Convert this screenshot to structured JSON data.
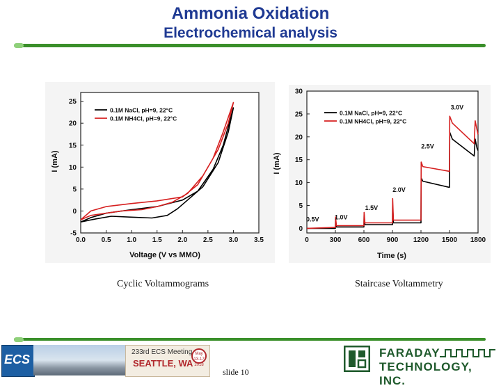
{
  "slide": {
    "title": "Ammonia Oxidation",
    "subtitle": "Electrochemical analysis",
    "caption_left": "Cyclic Voltammograms",
    "caption_right": "Staircase Voltammetry",
    "slide_number": "slide 10"
  },
  "footer": {
    "ecs_logo_text": "ECS",
    "meeting_line1": "233rd ECS Meeting",
    "meeting_line2": "SEATTLE, WA",
    "meeting_badge": "May 13-17 2018",
    "company_line1": "FARADAY",
    "company_line2": "TECHNOLOGY, INC."
  },
  "colors": {
    "title": "#1f3a93",
    "series_nacl": "#000000",
    "series_nh4cl": "#d62020",
    "accent_bar": "#3a8f2a",
    "company": "#1f5a2c"
  },
  "chart_data": [
    {
      "type": "line",
      "xlabel": "Voltage (V vs MMO)",
      "ylabel": "I (mA)",
      "xlim": [
        0,
        3.5
      ],
      "ylim": [
        -5,
        27
      ],
      "xticks": [
        "0.0",
        "0.5",
        "1.0",
        "1.5",
        "2.0",
        "2.5",
        "3.0",
        "3.5"
      ],
      "yticks": [
        "-5",
        "0",
        "5",
        "10",
        "15",
        "20",
        "25"
      ],
      "legend_position": "top-left",
      "series": [
        {
          "name": "0.1M NaCl, pH=9, 22°C",
          "x": [
            0,
            0.2,
            0.5,
            1.0,
            1.5,
            2.0,
            2.3,
            2.6,
            2.8,
            3.0,
            2.9,
            2.7,
            2.4,
            2.1,
            1.9,
            1.7,
            1.4,
            1.0,
            0.6,
            0.3,
            0
          ],
          "y": [
            -2.5,
            -1.5,
            -0.5,
            0.3,
            1.0,
            2.5,
            4.5,
            9.5,
            15.0,
            23.5,
            18.0,
            11.0,
            5.5,
            2.5,
            0.5,
            -1.0,
            -1.6,
            -1.4,
            -1.2,
            -1.8,
            -2.5
          ]
        },
        {
          "name": "0.1M NH4Cl, pH=9, 22°C",
          "x": [
            0,
            0.2,
            0.5,
            1.0,
            1.5,
            2.0,
            2.3,
            2.6,
            2.8,
            3.0,
            2.9,
            2.7,
            2.4,
            2.1,
            1.8,
            1.5,
            1.2,
            0.8,
            0.5,
            0.2,
            0
          ],
          "y": [
            -2.0,
            0.0,
            1.0,
            1.7,
            2.3,
            3.2,
            6.0,
            12.0,
            18.0,
            24.7,
            20.0,
            14.0,
            8.0,
            4.0,
            2.0,
            1.0,
            0.3,
            0.0,
            -0.5,
            -1.0,
            -2.0
          ]
        }
      ]
    },
    {
      "type": "line",
      "xlabel": "Time (s)",
      "ylabel": "I (mA)",
      "xlim": [
        0,
        1800
      ],
      "ylim": [
        -1,
        30
      ],
      "xticks": [
        "0",
        "300",
        "600",
        "900",
        "1200",
        "1500",
        "1800"
      ],
      "yticks": [
        "0",
        "5",
        "10",
        "15",
        "20",
        "25",
        "30"
      ],
      "legend_position": "top-left",
      "annotations": [
        {
          "text": "0.5V",
          "x": 60,
          "y": 1.5
        },
        {
          "text": "1.0V",
          "x": 360,
          "y": 2.0
        },
        {
          "text": "1.5V",
          "x": 680,
          "y": 4.0
        },
        {
          "text": "2.0V",
          "x": 970,
          "y": 8.0
        },
        {
          "text": "2.5V",
          "x": 1270,
          "y": 17.5
        },
        {
          "text": "3.0V",
          "x": 1580,
          "y": 26.0
        }
      ],
      "series": [
        {
          "name": "0.1M NaCl, pH=9, 22°C",
          "x": [
            0,
            290,
            300,
            302,
            310,
            590,
            600,
            602,
            610,
            890,
            900,
            902,
            910,
            1190,
            1200,
            1202,
            1220,
            1490,
            1500,
            1502,
            1530,
            1760,
            1770,
            1790,
            1800
          ],
          "y": [
            0,
            0,
            0,
            2.0,
            0.3,
            0.3,
            0.3,
            3.0,
            0.8,
            0.8,
            0.8,
            5.0,
            1.2,
            1.2,
            1.2,
            11.0,
            10.3,
            9.0,
            9.0,
            21.0,
            19.5,
            15.8,
            19.5,
            17.5,
            17.0
          ]
        },
        {
          "name": "0.1M NH4Cl, pH=9, 22°C",
          "x": [
            0,
            290,
            300,
            302,
            310,
            590,
            600,
            602,
            610,
            890,
            900,
            902,
            910,
            1190,
            1200,
            1202,
            1220,
            1490,
            1500,
            1502,
            1530,
            1760,
            1770,
            1790,
            1800
          ],
          "y": [
            0,
            0.2,
            0.2,
            2.5,
            0.6,
            0.6,
            0.6,
            3.5,
            1.2,
            1.2,
            1.2,
            6.5,
            1.8,
            1.8,
            1.8,
            14.5,
            13.5,
            12.5,
            12.5,
            24.5,
            23.0,
            18.5,
            23.5,
            21.5,
            20.5
          ]
        }
      ]
    }
  ]
}
